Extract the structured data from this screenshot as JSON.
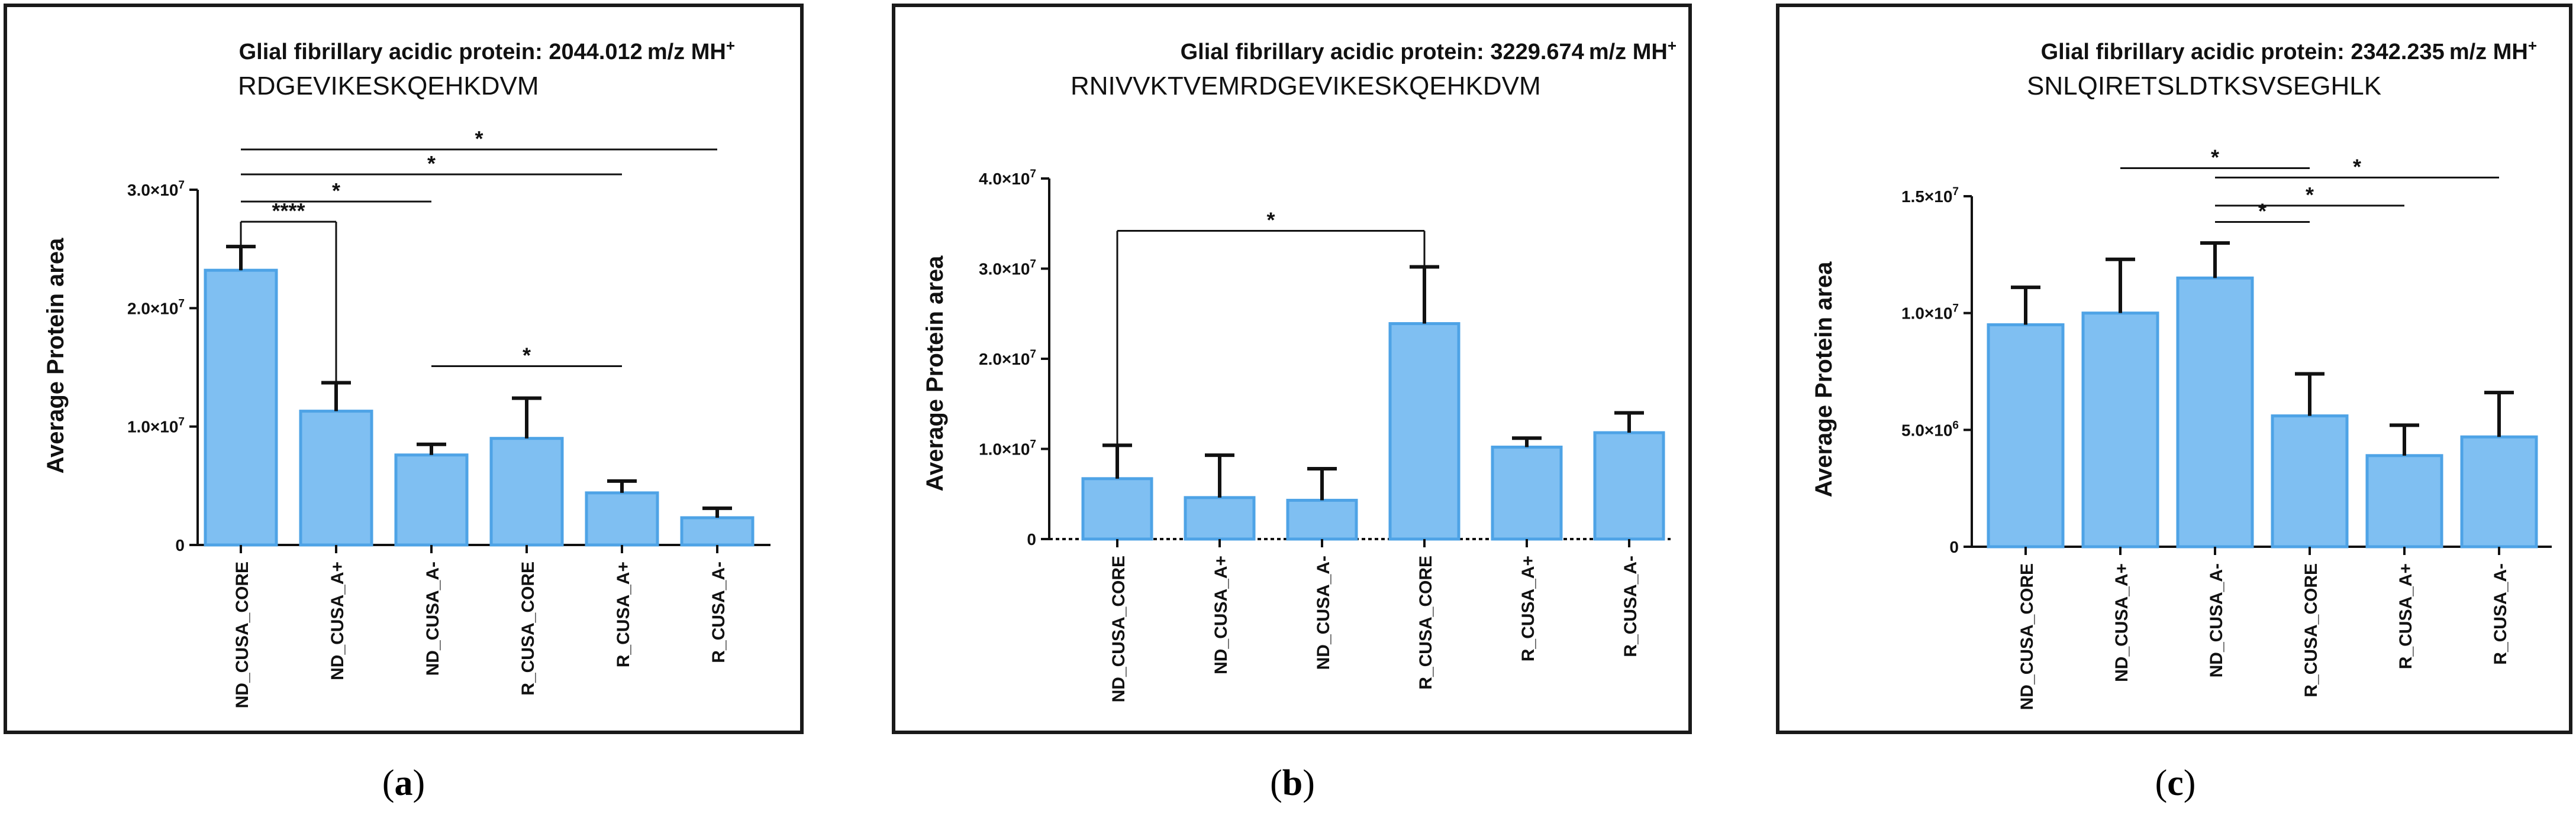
{
  "colors": {
    "bar_fill": "#7fbff2",
    "bar_stroke": "#4ea3e6",
    "ink": "#111111"
  },
  "chart_data": [
    {
      "panel_id": "a",
      "type": "bar",
      "caption_label": "a",
      "title": "Glial fibrillary acidic protein: 2044.012",
      "title_unit": "m/z MH",
      "title_sup": "+",
      "subtitle": "RDGEVIKESKQEHKDVM",
      "ylabel": "Average Protein area",
      "ylim": [
        0,
        30000000
      ],
      "ticks": [
        {
          "value": 0,
          "mant": "0",
          "exp": ""
        },
        {
          "value": 10000000,
          "mant": "1.0×10",
          "exp": "7"
        },
        {
          "value": 20000000,
          "mant": "2.0×10",
          "exp": "7"
        },
        {
          "value": 30000000,
          "mant": "3.0×10",
          "exp": "7"
        }
      ],
      "categories": [
        "ND_CUSA_CORE",
        "ND_CUSA_A+",
        "ND_CUSA_A-",
        "R_CUSA_CORE",
        "R_CUSA_A+",
        "R_CUSA_A-"
      ],
      "values": [
        23200000,
        11300000,
        7600000,
        9000000,
        4400000,
        2300000
      ],
      "errors": [
        2000000,
        2400000,
        900000,
        3400000,
        1000000,
        800000
      ],
      "significance": [
        {
          "from": 0,
          "to": 1,
          "label": "****",
          "bracket": true,
          "tip_from": 23200000,
          "tip_to": 13700000,
          "top": 27300000
        },
        {
          "from": 0,
          "to": 2,
          "label": "*",
          "top": 29000000
        },
        {
          "from": 0,
          "to": 4,
          "label": "*",
          "top": 31300000
        },
        {
          "from": 0,
          "to": 5,
          "label": "*",
          "top": 33400000
        },
        {
          "from": 2,
          "to": 4,
          "label": "*",
          "top": 15100000
        }
      ]
    },
    {
      "panel_id": "b",
      "type": "bar",
      "caption_label": "b",
      "title": "Glial fibrillary acidic protein: 3229.674",
      "title_unit": "m/z MH",
      "title_sup": "+",
      "subtitle": "RNIVVKTVEMRDGEVIKESKQEHKDVM",
      "ylabel": "Average Protein area",
      "ylim": [
        0,
        40000000
      ],
      "ticks": [
        {
          "value": 0,
          "mant": "0",
          "exp": ""
        },
        {
          "value": 10000000,
          "mant": "1.0×10",
          "exp": "7"
        },
        {
          "value": 20000000,
          "mant": "2.0×10",
          "exp": "7"
        },
        {
          "value": 30000000,
          "mant": "3.0×10",
          "exp": "7"
        },
        {
          "value": 40000000,
          "mant": "4.0×10",
          "exp": "7"
        }
      ],
      "categories": [
        "ND_CUSA_CORE",
        "ND_CUSA_A+",
        "ND_CUSA_A-",
        "R_CUSA_CORE",
        "R_CUSA_A+",
        "R_CUSA_A-"
      ],
      "values": [
        6700000,
        4600000,
        4300000,
        23900000,
        10200000,
        11800000
      ],
      "errors": [
        3700000,
        4700000,
        3500000,
        6300000,
        1000000,
        2200000
      ],
      "significance": [
        {
          "from": 0,
          "to": 3,
          "label": "*",
          "bracket": true,
          "tip_from": 10500000,
          "tip_to": 30300000,
          "top": 34200000
        }
      ]
    },
    {
      "panel_id": "c",
      "type": "bar",
      "caption_label": "c",
      "title": "Glial fibrillary acidic protein: 2342.235",
      "title_unit": "m/z MH",
      "title_sup": "+",
      "subtitle": "SNLQIRETSLDTKSVSEGHLK",
      "ylabel": "Average Protein area",
      "ylim": [
        0,
        15000000
      ],
      "ticks": [
        {
          "value": 0,
          "mant": "0",
          "exp": ""
        },
        {
          "value": 5000000,
          "mant": "5.0×10",
          "exp": "6"
        },
        {
          "value": 10000000,
          "mant": "1.0×10",
          "exp": "7"
        },
        {
          "value": 15000000,
          "mant": "1.5×10",
          "exp": "7"
        }
      ],
      "categories": [
        "ND_CUSA_CORE",
        "ND_CUSA_A+",
        "ND_CUSA_A-",
        "R_CUSA_CORE",
        "R_CUSA_A+",
        "R_CUSA_A-"
      ],
      "values": [
        9500000,
        10000000,
        11500000,
        5600000,
        3900000,
        4700000
      ],
      "errors": [
        1600000,
        2300000,
        1500000,
        1800000,
        1300000,
        1900000
      ],
      "significance": [
        {
          "from": 1,
          "to": 3,
          "label": "*",
          "top": 16200000
        },
        {
          "from": 2,
          "to": 5,
          "label": "*",
          "top": 15800000
        },
        {
          "from": 2,
          "to": 4,
          "label": "*",
          "top": 14600000
        },
        {
          "from": 2,
          "to": 3,
          "label": "*",
          "top": 13900000
        }
      ]
    }
  ]
}
